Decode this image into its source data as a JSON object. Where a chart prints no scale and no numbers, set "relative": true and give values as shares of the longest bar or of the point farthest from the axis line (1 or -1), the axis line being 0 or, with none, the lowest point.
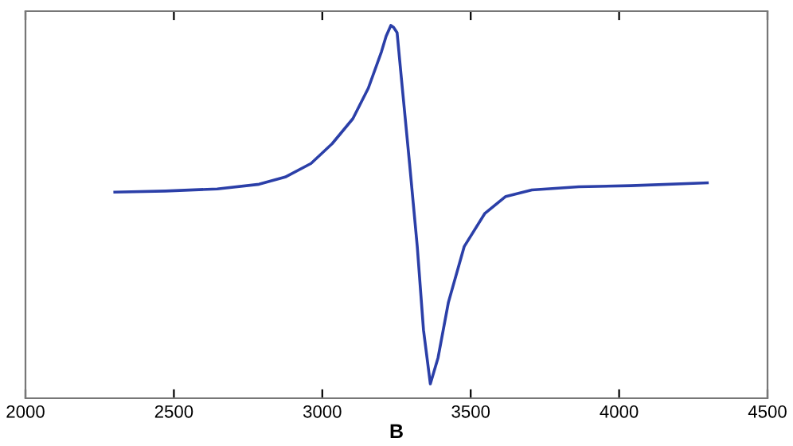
{
  "chart_data": {
    "type": "line",
    "xlabel": "B",
    "relative": true,
    "xlim": [
      2000,
      4500
    ],
    "xticks": [
      2000,
      2500,
      3000,
      3500,
      4000,
      4500
    ],
    "tick_labels": "x",
    "grid": false,
    "marker": "none",
    "line_style": "solid",
    "series": [
      {
        "color": "#2b3fa8",
        "x": [
          2301,
          2471,
          2646,
          2787,
          2875,
          2962,
          3033,
          3103,
          3155,
          3199,
          3215,
          3231,
          3240,
          3252,
          3267,
          3294,
          3320,
          3341,
          3364,
          3390,
          3425,
          3478,
          3548,
          3618,
          3706,
          3864,
          4039,
          4297
        ],
        "values": [
          0.535,
          0.538,
          0.544,
          0.557,
          0.577,
          0.615,
          0.67,
          0.74,
          0.825,
          0.926,
          0.97,
          1.0,
          0.995,
          0.98,
          0.848,
          0.615,
          0.383,
          0.15,
          0.0,
          0.073,
          0.228,
          0.383,
          0.476,
          0.523,
          0.541,
          0.55,
          0.553,
          0.561
        ]
      }
    ]
  }
}
